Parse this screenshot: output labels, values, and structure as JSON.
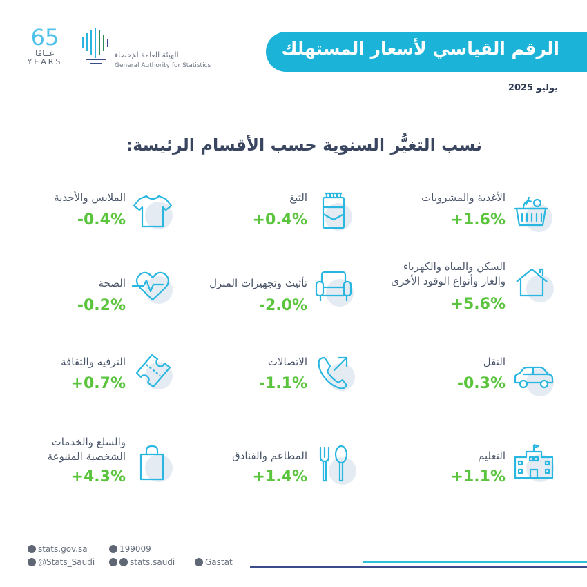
{
  "header": {
    "title": "الرقم القياسي لأسعار المستهلك",
    "date": "يوليو 2025",
    "logo_number": "65",
    "logo_arabic": "عــامًا",
    "logo_english": "YEARS",
    "org_name_ar": "الهيئة العامة للإحصاء",
    "org_name_en": "General Authority for Statistics"
  },
  "heading": "نسب التغيُّر السنوية حسب الأقسام الرئيسة:",
  "categories": [
    {
      "label": "الأغذية والمشروبات",
      "value": "+1.6%",
      "icon": "food-basket-icon"
    },
    {
      "label": "التبغ",
      "value": "+0.4%",
      "icon": "cigarette-pack-icon"
    },
    {
      "label": "الملابس والأحذية",
      "value": "-0.4%",
      "icon": "tshirt-icon"
    },
    {
      "label_line1": "السكن والمياه والكهرباء",
      "label_line2": "والغاز وأنواع الوقود الأخرى",
      "value": "+5.6%",
      "icon": "house-icon"
    },
    {
      "label": "تأثيث وتجهيزات المنزل",
      "value": "-2.0%",
      "icon": "armchair-icon"
    },
    {
      "label": "الصحة",
      "value": "-0.2%",
      "icon": "heart-pulse-icon"
    },
    {
      "label": "النقل",
      "value": "-0.3%",
      "icon": "car-icon"
    },
    {
      "label": "الاتصالات",
      "value": "-1.1%",
      "icon": "phone-icon"
    },
    {
      "label": "الترفيه والثقافة",
      "value": "+0.7%",
      "icon": "ticket-icon"
    },
    {
      "label": "التعليم",
      "value": "+1.1%",
      "icon": "school-icon"
    },
    {
      "label": "المطاعم والفنادق",
      "value": "+1.4%",
      "icon": "fork-spoon-icon"
    },
    {
      "label_line1": "والسلع والخدمات",
      "label_line2": "الشخصية المتنوعة",
      "value": "+4.3%",
      "icon": "shopping-bag-icon"
    }
  ],
  "footer": {
    "website": "stats.gov.sa",
    "phone": "199009",
    "twitter": "@Stats_Saudi",
    "social": "stats.saudi",
    "linkedin": "Gastat"
  },
  "colors": {
    "accent": "#1bb3d8",
    "positive": "#5ac43d",
    "icon": "#29b6e0",
    "icon_bg": "#e4ebf3"
  }
}
